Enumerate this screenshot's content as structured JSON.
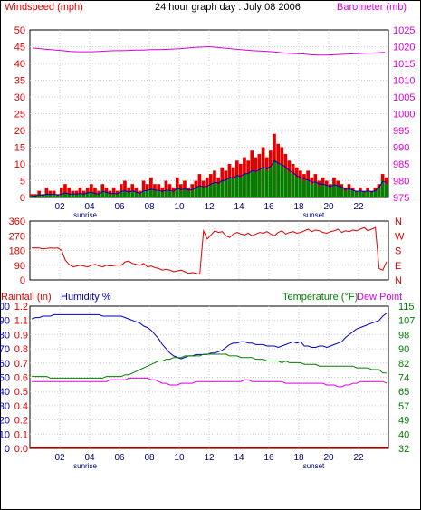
{
  "title": "24 hour graph day : July 08 2006",
  "colors": {
    "red": "#e00000",
    "magenta": "#dd00dd",
    "blue": "#0000c0",
    "green": "#008000",
    "grid": "#cfcfcf"
  },
  "x_axis": {
    "ticks": [
      "02",
      "04",
      "06",
      "08",
      "10",
      "12",
      "14",
      "16",
      "18",
      "20",
      "22"
    ],
    "sunrise_label": "sunrise",
    "sunset_label": "sunset",
    "sunrise_hour": 3.7,
    "sunset_hour": 19.0,
    "range": [
      0,
      24
    ]
  },
  "chart_data": [
    {
      "type": "bar",
      "title": "Wind and Barometer",
      "left_label": "Windspeed (mph)",
      "right_label": "Barometer (mb)",
      "left_ticks": [
        "50",
        "45",
        "40",
        "35",
        "30",
        "25",
        "20",
        "15",
        "10",
        "5",
        "0"
      ],
      "right_ticks": [
        "1025",
        "1020",
        "1015",
        "1010",
        "1005",
        "1000",
        "995",
        "990",
        "985",
        "980",
        "975"
      ],
      "ylim_left": [
        0,
        50
      ],
      "ylim_right": [
        975,
        1025
      ],
      "gust": [
        1,
        1,
        2,
        1,
        3,
        2,
        2,
        1,
        3,
        4,
        3,
        2,
        2,
        3,
        2,
        3,
        4,
        3,
        2,
        4,
        3,
        2,
        3,
        2,
        4,
        5,
        3,
        4,
        3,
        2,
        5,
        4,
        6,
        4,
        4,
        3,
        5,
        4,
        3,
        6,
        4,
        5,
        3,
        4,
        5,
        7,
        5,
        6,
        7,
        8,
        6,
        9,
        8,
        10,
        9,
        11,
        10,
        12,
        11,
        14,
        12,
        13,
        15,
        12,
        14,
        19,
        16,
        15,
        13,
        11,
        10,
        9,
        8,
        7,
        8,
        6,
        7,
        5,
        6,
        5,
        4,
        6,
        5,
        4,
        3,
        4,
        3,
        2,
        3,
        2,
        3,
        2,
        3,
        4,
        7,
        6
      ],
      "avg": [
        0.5,
        0.5,
        1,
        0.5,
        1,
        1,
        1,
        0.5,
        1,
        1.5,
        1,
        1,
        1,
        1,
        1,
        1.5,
        1.5,
        1,
        1,
        2,
        1.5,
        1,
        1,
        1,
        2,
        2,
        1.5,
        2,
        1.5,
        1,
        2,
        2,
        2.5,
        2,
        2,
        1.5,
        2,
        2,
        1.5,
        3,
        2,
        2.5,
        2,
        2,
        3,
        3.5,
        3,
        3,
        4,
        4.5,
        4,
        5,
        5,
        6,
        5.5,
        6.5,
        6,
        7,
        7,
        8,
        7.5,
        8,
        9,
        8,
        9,
        11,
        10,
        9.5,
        8.5,
        7.5,
        7,
        6,
        5.5,
        5,
        5,
        4,
        4.5,
        3.5,
        4,
        3.5,
        3,
        4,
        3.5,
        3,
        2,
        2.5,
        2,
        1.5,
        2,
        1.5,
        2,
        1.5,
        2,
        3,
        5,
        4
      ],
      "speed_line": [
        0.5,
        0.4,
        0.8,
        0.6,
        1,
        0.9,
        1,
        0.7,
        1,
        1.3,
        1,
        1,
        1,
        1.2,
        1,
        1.4,
        1.5,
        1.2,
        1,
        1.8,
        1.5,
        1.2,
        1.2,
        1.1,
        1.8,
        2,
        1.6,
        2,
        1.6,
        1.2,
        2,
        2.1,
        2.5,
        2.2,
        2.1,
        1.8,
        2.2,
        2.1,
        1.8,
        2.8,
        2.3,
        2.6,
        2.2,
        2.3,
        3,
        3.5,
        3.2,
        3.4,
        4,
        4.5,
        4.3,
        5,
        5.2,
        6,
        5.8,
        6.5,
        6.4,
        7,
        7.2,
        8,
        7.8,
        8.3,
        9,
        8.6,
        9.3,
        11,
        10.2,
        9.8,
        9,
        8,
        7.4,
        6.5,
        6,
        5.5,
        5.2,
        4.6,
        4.6,
        4,
        4,
        3.6,
        3.3,
        3.8,
        3.5,
        3.1,
        2.4,
        2.6,
        2.2,
        1.8,
        2,
        1.7,
        2,
        1.7,
        2,
        3,
        4.8,
        4.5
      ],
      "barometer": [
        1019.6,
        1019.4,
        1019.2,
        1019.0,
        1018.8,
        1018.6,
        1018.5,
        1018.5,
        1018.5,
        1018.6,
        1018.7,
        1018.8,
        1018.8,
        1018.9,
        1019.0,
        1019.0,
        1019.1,
        1019.1,
        1019.2,
        1019.3,
        1019.4,
        1019.6,
        1019.8,
        1019.9,
        1020.0,
        1019.8,
        1019.6,
        1019.4,
        1019.2,
        1019.0,
        1018.8,
        1018.7,
        1018.6,
        1018.4,
        1018.2,
        1018.0,
        1017.9,
        1017.8,
        1017.6,
        1017.5,
        1017.5,
        1017.6,
        1017.7,
        1017.8,
        1017.9,
        1018.0,
        1018.1,
        1018.2,
        1018.3
      ]
    },
    {
      "type": "line",
      "title": "Wind direction",
      "left_ticks": [
        "360",
        "270",
        "180",
        "90",
        "0"
      ],
      "right_ticks": [
        "N",
        "W",
        "S",
        "E",
        "N"
      ],
      "ylim": [
        0,
        360
      ],
      "values": [
        195,
        196,
        195,
        190,
        192,
        195,
        194,
        195,
        180,
        120,
        95,
        80,
        85,
        90,
        85,
        80,
        90,
        95,
        85,
        80,
        90,
        85,
        88,
        92,
        90,
        110,
        115,
        100,
        95,
        90,
        100,
        80,
        85,
        75,
        70,
        60,
        65,
        60,
        50,
        55,
        60,
        50,
        40,
        45,
        40,
        35,
        300,
        250,
        275,
        300,
        290,
        295,
        270,
        260,
        280,
        290,
        280,
        275,
        285,
        270,
        280,
        290,
        285,
        295,
        280,
        270,
        290,
        300,
        280,
        290,
        295,
        285,
        290,
        300,
        310,
        295,
        305,
        300,
        290,
        285,
        295,
        300,
        310,
        290,
        300,
        295,
        305,
        300,
        310,
        320,
        300,
        310,
        320,
        70,
        60,
        110
      ]
    },
    {
      "type": "line",
      "title": "Rain, Humidity, Temperature, Dew Point",
      "label_rain": "Rainfall (in)",
      "label_humidity": "Humidity %",
      "label_temp": "Temperature (°F)",
      "label_dew": "Dew Point",
      "humidity_ticks": [
        "100",
        "90",
        "80",
        "70",
        "60",
        "50",
        "40",
        "30",
        "20",
        "10",
        "0"
      ],
      "rain_ticks": [
        "1.2",
        "1.1",
        "0.9",
        "0.8",
        "0.7",
        "0.6",
        "0.5",
        "0.4",
        "0.2",
        "0.1",
        "0.0"
      ],
      "temp_ticks": [
        "115",
        "107",
        "98",
        "90",
        "82",
        "74",
        "65",
        "57",
        "49",
        "40",
        "32"
      ],
      "ylim_humidity": [
        0,
        100
      ],
      "ylim_temp": [
        32,
        115
      ],
      "humidity": [
        91,
        92,
        92,
        93,
        93,
        93,
        94,
        94,
        94,
        94,
        94,
        94,
        94,
        94,
        94,
        94,
        94,
        94,
        94,
        93,
        93,
        93,
        93,
        93,
        93,
        92,
        91,
        90,
        89,
        88,
        86,
        85,
        83,
        80,
        77,
        73,
        70,
        67,
        65,
        64,
        63,
        64,
        65,
        65,
        66,
        66,
        66,
        66,
        67,
        67,
        68,
        69,
        71,
        73,
        74,
        74,
        75,
        75,
        74,
        74,
        73,
        73,
        73,
        72,
        72,
        72,
        71,
        72,
        73,
        74,
        75,
        74,
        75,
        72,
        72,
        71,
        71,
        72,
        72,
        71,
        72,
        73,
        74,
        75,
        78,
        80,
        82,
        84,
        85,
        86,
        87,
        88,
        89,
        90,
        93,
        95
      ],
      "temperature": [
        74,
        74,
        74,
        74,
        74,
        73,
        73,
        73,
        73,
        73,
        73,
        73,
        73,
        73,
        73,
        73,
        73,
        73,
        73,
        73,
        74,
        74,
        74,
        74,
        74,
        75,
        75,
        76,
        77,
        78,
        79,
        80,
        81,
        82,
        83,
        83,
        84,
        84,
        85,
        85,
        85,
        86,
        86,
        86,
        86,
        86,
        87,
        87,
        87,
        87,
        87,
        87,
        87,
        86,
        86,
        86,
        85,
        85,
        85,
        85,
        84,
        84,
        84,
        83,
        83,
        83,
        83,
        82,
        83,
        82,
        82,
        82,
        82,
        81,
        81,
        81,
        81,
        80,
        80,
        80,
        80,
        80,
        80,
        80,
        80,
        80,
        80,
        79,
        79,
        79,
        79,
        78,
        78,
        78,
        76,
        76
      ],
      "dew_point": [
        71,
        71,
        71,
        71,
        71,
        71,
        71,
        71,
        71,
        71,
        71,
        71,
        71,
        71,
        71,
        71,
        71,
        71,
        71,
        71,
        71,
        72,
        72,
        72,
        72,
        72,
        73,
        73,
        73,
        73,
        73,
        73,
        72,
        72,
        71,
        70,
        70,
        69,
        69,
        69,
        70,
        70,
        70,
        70,
        71,
        71,
        71,
        71,
        71,
        71,
        71,
        71,
        71,
        71,
        71,
        71,
        71,
        72,
        72,
        71,
        71,
        71,
        71,
        71,
        71,
        71,
        71,
        71,
        70,
        70,
        70,
        70,
        70,
        70,
        70,
        70,
        70,
        70,
        70,
        69,
        69,
        69,
        68,
        68,
        69,
        69,
        70,
        70,
        71,
        71,
        71,
        71,
        71,
        71,
        71,
        70
      ],
      "rainfall": 0.0
    }
  ]
}
